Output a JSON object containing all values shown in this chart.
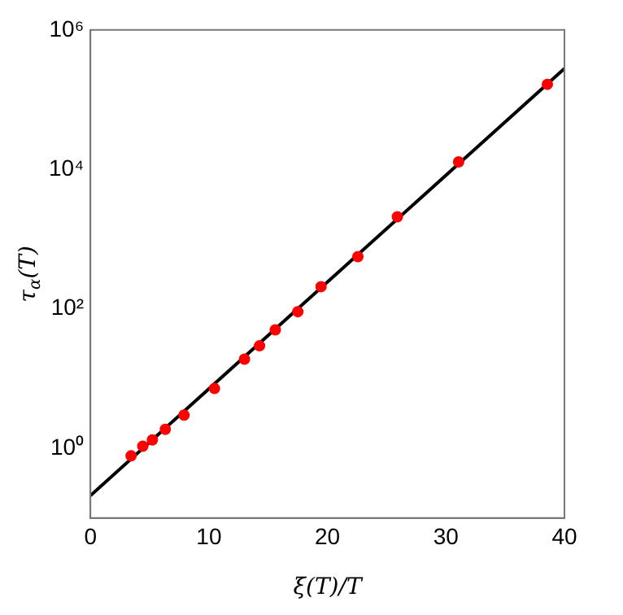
{
  "chart_data": {
    "type": "scatter",
    "xlabel": "ξ(T)/T",
    "ylabel": "τ$_{α}$(T)",
    "log": "y",
    "grid": false,
    "legend": false,
    "xlim": [
      0,
      40
    ],
    "xticks": [
      0,
      10,
      20,
      30,
      40
    ],
    "ylim": [
      0.1,
      1000000
    ],
    "yticks": [
      {
        "value": 1,
        "label": "10⁰"
      },
      {
        "value": 100,
        "label": "10²"
      },
      {
        "value": 10000,
        "label": "10⁴"
      },
      {
        "value": 1000000,
        "label": "10⁶"
      }
    ],
    "series": [
      {
        "marker": "circle",
        "color": "#ff0000",
        "x": [
          3.43,
          4.42,
          5.23,
          6.32,
          7.9,
          10.47,
          13.0,
          14.27,
          15.6,
          17.5,
          19.46,
          22.57,
          25.9,
          31.07,
          38.56
        ],
        "values": [
          0.78,
          1.07,
          1.32,
          1.87,
          3.0,
          7.2,
          19,
          29.5,
          50,
          91,
          208,
          560,
          2090,
          12800,
          166000
        ]
      },
      {
        "type": "line",
        "color": "#000000",
        "x": [
          0,
          40
        ],
        "values": [
          0.21,
          280000
        ]
      }
    ]
  }
}
